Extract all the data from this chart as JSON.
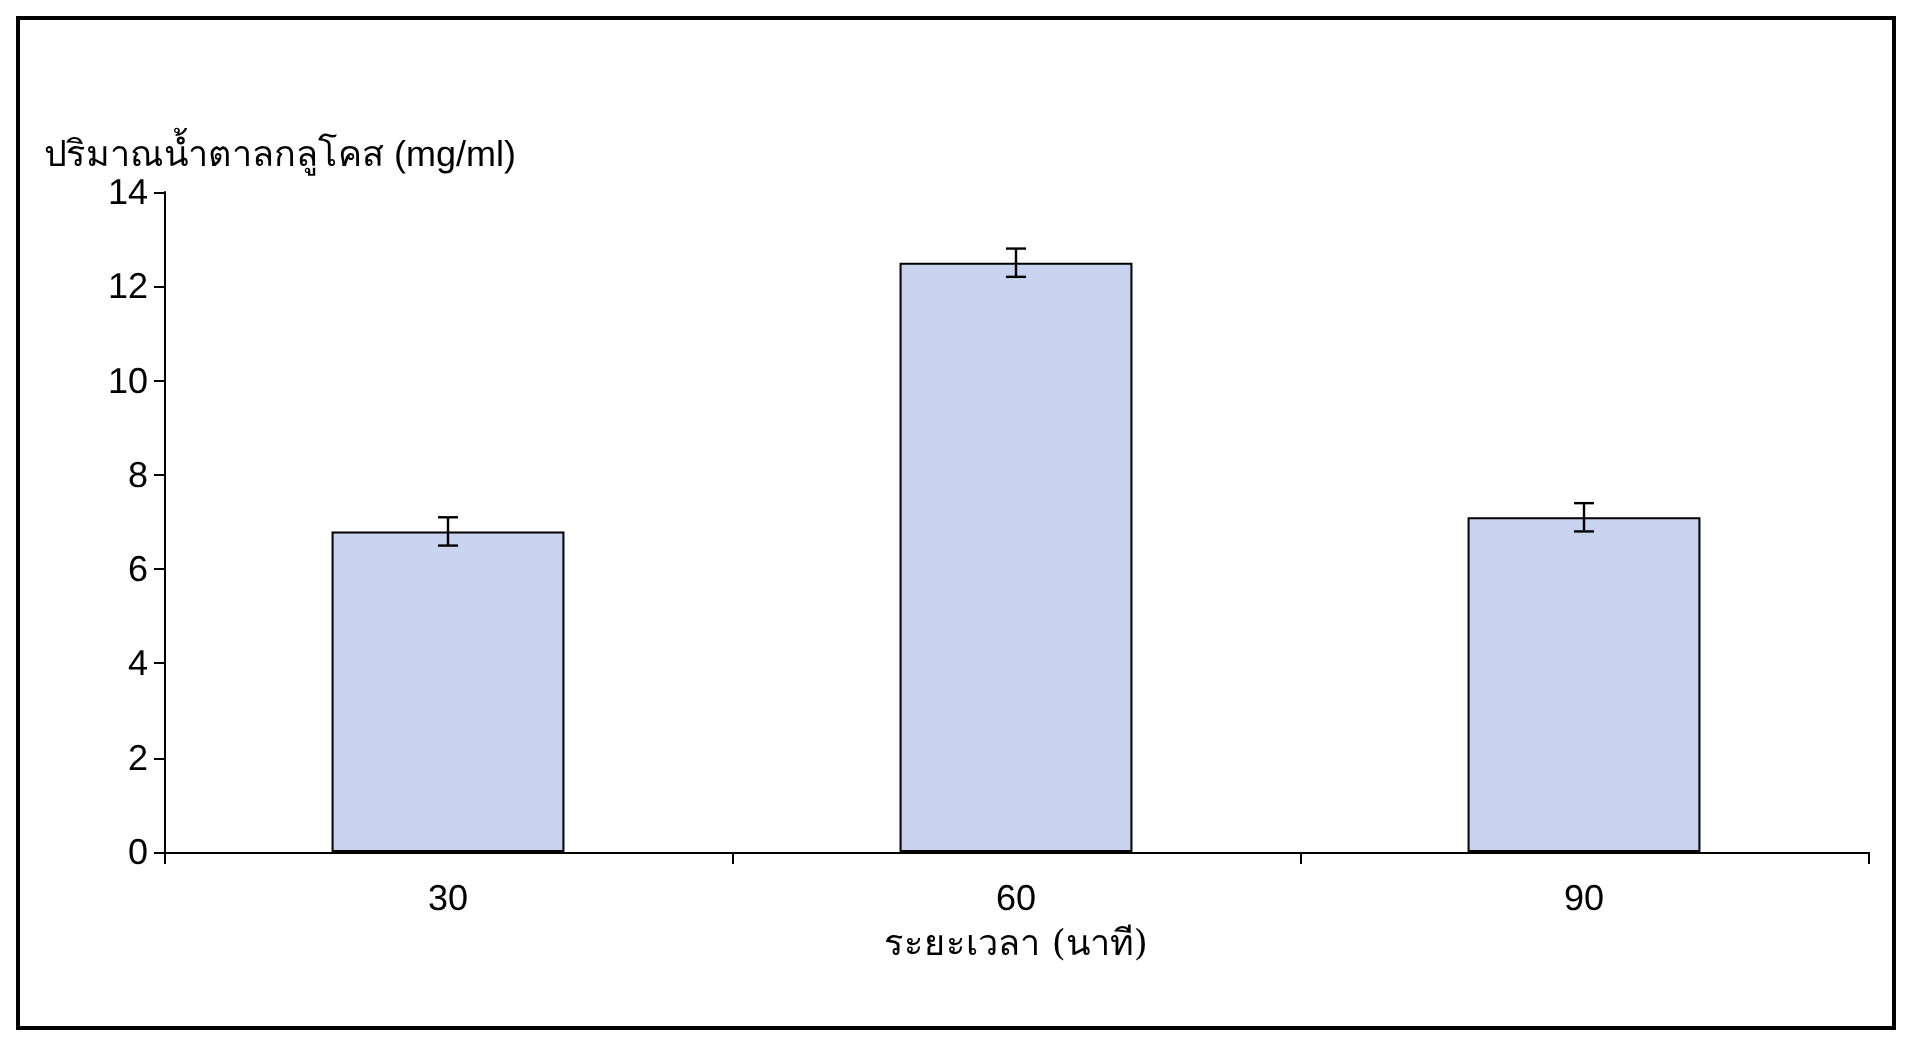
{
  "chart_data": {
    "type": "bar",
    "ylabel": "ปริมาณน้ำตาลกลูโคส (mg/ml)",
    "xlabel": "ระยะเวลา (นาที)",
    "categories": [
      "30",
      "60",
      "90"
    ],
    "values": [
      6.8,
      12.5,
      7.1
    ],
    "errors": [
      0.3,
      0.3,
      0.3
    ],
    "color": "#c9d3f0",
    "ylim": [
      0,
      14
    ],
    "yticks": [
      0,
      2,
      4,
      6,
      8,
      10,
      12,
      14
    ],
    "grid": false
  }
}
